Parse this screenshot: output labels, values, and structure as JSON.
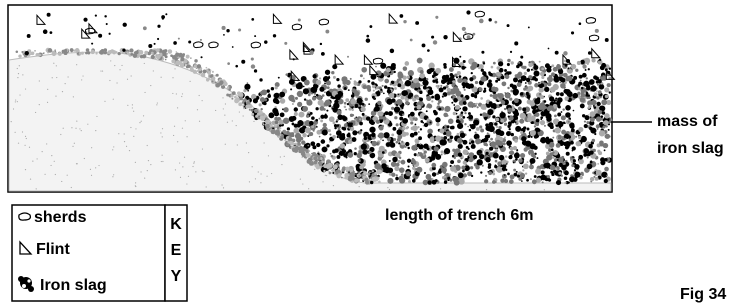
{
  "annotation": {
    "lines": [
      "mass of",
      "iron slag"
    ]
  },
  "caption": "length of trench 6m",
  "key": {
    "title": [
      "K",
      "E",
      "Y"
    ],
    "items": [
      {
        "label": "sherds"
      },
      {
        "label": "Flint"
      },
      {
        "label": "Iron slag"
      }
    ]
  },
  "figure": "Fig 34"
}
